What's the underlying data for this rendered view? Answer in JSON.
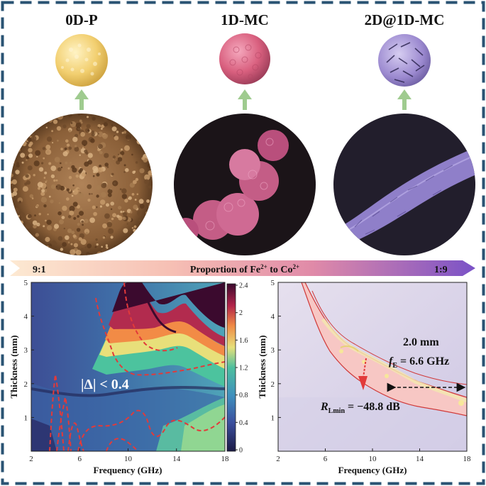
{
  "panels": [
    {
      "title": "0D-P"
    },
    {
      "title": "1D-MC"
    },
    {
      "title": "2D@1D-MC"
    }
  ],
  "ratio_bar": {
    "left": "9:1",
    "right": "1:9",
    "label_prefix": "Proportion of",
    "label_ion1": "Fe",
    "label_ion1_sup": "2+",
    "label_mid": "to Co",
    "label_ion2_sup": "2+"
  },
  "colors": {
    "frame": "#2a5373",
    "arrow": "#9fcb8f",
    "p0_core": "#f2cf70",
    "p1_core": "#d9607f",
    "p2_core": "#9c8ad0",
    "sem0": "#9a6f46",
    "sem1": "#c45d86",
    "sem2": "#8f7fc9"
  },
  "chart_data": [
    {
      "type": "heatmap",
      "xlabel": "Frequency  (GHz)",
      "ylabel": "Thickness (mm)",
      "xlim": [
        2,
        18
      ],
      "ylim": [
        0,
        5
      ],
      "xticks": [
        "2",
        "6",
        "10",
        "14",
        "18"
      ],
      "yticks": [
        "1",
        "2",
        "3",
        "4",
        "5"
      ],
      "colorbar_ticks": [
        "0",
        "0.4",
        "0.8",
        "1.2",
        "1.6",
        "2",
        "2.4"
      ],
      "colorbar_range": [
        0,
        2.4
      ],
      "annotation": "|Δ|  < 0.4",
      "contour_level": 0.4
    },
    {
      "type": "heatmap",
      "xlabel": "Frequency  (GHz)",
      "ylabel": "Thickness (mm)",
      "xlim": [
        2,
        18
      ],
      "ylim": [
        0,
        5
      ],
      "xticks": [
        "2",
        "6",
        "10",
        "14",
        "18"
      ],
      "yticks": [
        "1",
        "2",
        "3",
        "4",
        "5"
      ],
      "thickness_label": "2.0 mm",
      "fe_symbol": "f",
      "fe_sub": "E",
      "fe_value": "= 6.6 GHz",
      "rl_symbol": "R",
      "rl_sub": "Lmin",
      "rl_value": "= −48.8 dB",
      "thickness_mm": 2.0,
      "fe_ghz": 6.6,
      "rl_min_db": -48.8,
      "band_ghz": [
        11.2,
        18
      ]
    }
  ]
}
